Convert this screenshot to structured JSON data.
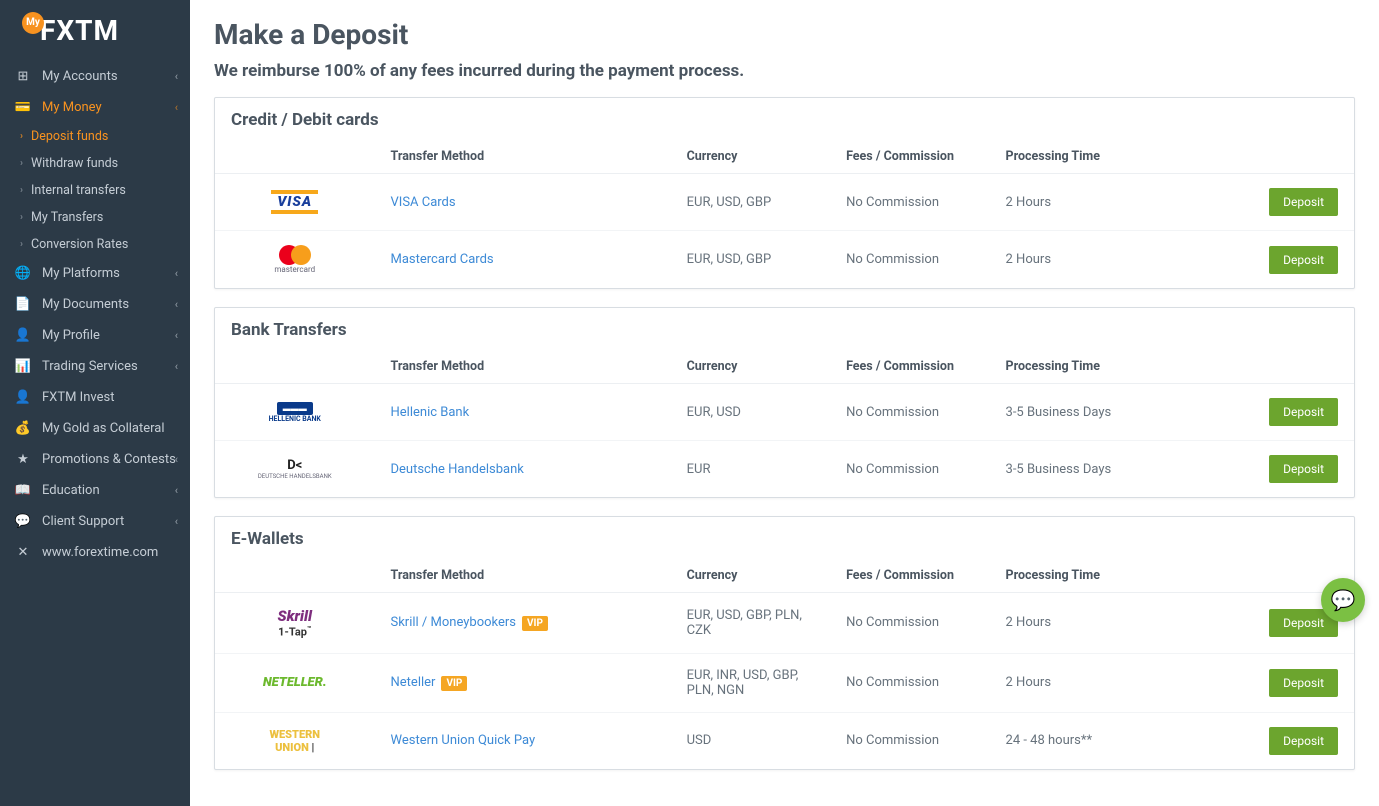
{
  "logo": {
    "badge": "My",
    "text": "FXTM"
  },
  "sidebar": {
    "items": [
      {
        "icon": "accounts",
        "label": "My Accounts",
        "expandable": true
      },
      {
        "icon": "money",
        "label": "My Money",
        "expandable": true,
        "active": true
      },
      {
        "icon": "platforms",
        "label": "My Platforms",
        "expandable": true
      },
      {
        "icon": "documents",
        "label": "My Documents",
        "expandable": true
      },
      {
        "icon": "profile",
        "label": "My Profile",
        "expandable": true
      },
      {
        "icon": "trading",
        "label": "Trading Services",
        "expandable": true
      },
      {
        "icon": "invest",
        "label": "FXTM Invest",
        "expandable": false
      },
      {
        "icon": "gold",
        "label": "My Gold as Collateral",
        "expandable": false
      },
      {
        "icon": "star",
        "label": "Promotions & Contests",
        "expandable": true
      },
      {
        "icon": "education",
        "label": "Education",
        "expandable": true
      },
      {
        "icon": "support",
        "label": "Client Support",
        "expandable": true
      },
      {
        "icon": "globe",
        "label": "www.forextime.com",
        "expandable": false
      }
    ],
    "sub": [
      {
        "label": "Deposit funds",
        "active": true
      },
      {
        "label": "Withdraw funds"
      },
      {
        "label": "Internal transfers"
      },
      {
        "label": "My Transfers"
      },
      {
        "label": "Conversion Rates"
      }
    ]
  },
  "page": {
    "title": "Make a Deposit",
    "subtitle": "We reimburse 100% of any fees incurred during the payment process."
  },
  "columns": {
    "method": "Transfer Method",
    "currency": "Currency",
    "fees": "Fees / Commission",
    "time": "Processing Time"
  },
  "deposit_label": "Deposit",
  "vip_label": "VIP",
  "sections": [
    {
      "title": "Credit / Debit cards",
      "rows": [
        {
          "logo": "visa",
          "name": "VISA Cards",
          "currency": "EUR, USD, GBP",
          "fees": "No Commission",
          "time": "2 Hours"
        },
        {
          "logo": "mastercard",
          "name": "Mastercard Cards",
          "currency": "EUR, USD, GBP",
          "fees": "No Commission",
          "time": "2 Hours"
        }
      ]
    },
    {
      "title": "Bank Transfers",
      "rows": [
        {
          "logo": "hellenic",
          "logo_text": "HELLENIC BANK",
          "name": "Hellenic Bank",
          "currency": "EUR, USD",
          "fees": "No Commission",
          "time": "3-5 Business Days"
        },
        {
          "logo": "deutsche",
          "logo_text": "DEUTSCHE HANDELSBANK",
          "name": "Deutsche Handelsbank",
          "currency": "EUR",
          "fees": "No Commission",
          "time": "3-5 Business Days"
        }
      ]
    },
    {
      "title": "E-Wallets",
      "rows": [
        {
          "logo": "skrill",
          "logo_text": "Skrill 1-Tap",
          "name": "Skrill / Moneybookers",
          "vip": true,
          "currency": "EUR, USD, GBP, PLN, CZK",
          "fees": "No Commission",
          "time": "2 Hours"
        },
        {
          "logo": "neteller",
          "logo_text": "NETELLER.",
          "name": "Neteller",
          "vip": true,
          "currency": "EUR, INR, USD, GBP, PLN, NGN",
          "fees": "No Commission",
          "time": "2 Hours"
        },
        {
          "logo": "wu",
          "logo_text": "WESTERN UNION",
          "name": "Western Union Quick Pay",
          "currency": "USD",
          "fees": "No Commission",
          "time": "24 - 48 hours**"
        }
      ]
    }
  ],
  "colors": {
    "sidebar_bg": "#2c3a47",
    "accent": "#f79220",
    "link": "#3d8ad6",
    "btn": "#6ca52e",
    "text_dark": "#4a5560",
    "text_body": "#67727c",
    "border": "#d8dde2"
  }
}
